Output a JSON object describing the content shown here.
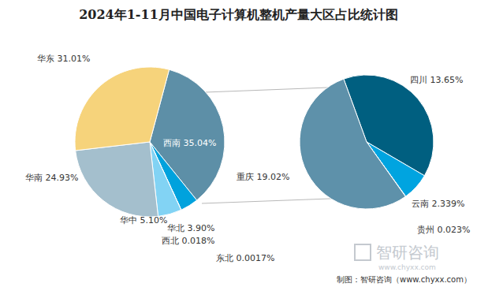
{
  "chart_data": [
    {
      "type": "pie",
      "title": "2024年1-11月中国电子计算机整机产量大区占比统计图",
      "categories": [
        "西南",
        "华北",
        "西北",
        "东北",
        "华中",
        "华南",
        "华东"
      ],
      "values": [
        35.04,
        3.9,
        0.018,
        0.0017,
        5.1,
        24.93,
        31.01
      ],
      "value_labels": [
        "35.04%",
        "3.90%",
        "0.018%",
        "0.0017%",
        "5.10%",
        "24.93%",
        "31.01%"
      ],
      "colors": [
        "#5d8fa7",
        "#00a2dd",
        "#3f6f8a",
        "#9dd6ee",
        "#82d3f4",
        "#a4bfcd",
        "#f6d37b"
      ],
      "data_labels": true,
      "annotations": [
        "智研咨询",
        "www.chyxx.com",
        "制图：智研咨询（www.chyxx.com）"
      ]
    },
    {
      "type": "pie",
      "categories": [
        "四川",
        "云南",
        "贵州",
        "重庆"
      ],
      "values": [
        13.65,
        2.339,
        0.023,
        19.02
      ],
      "value_labels": [
        "13.65%",
        "2.339%",
        "0.023%",
        "19.02%"
      ],
      "colors": [
        "#005f80",
        "#00a4e0",
        "#82d3f4",
        "#5e91aa"
      ],
      "data_labels": true
    }
  ]
}
